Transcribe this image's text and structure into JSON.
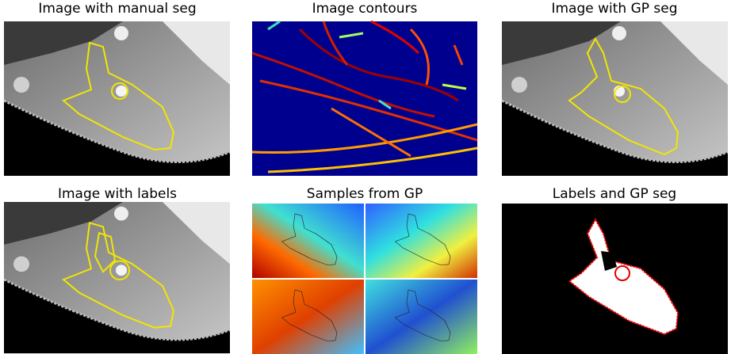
{
  "panels": [
    {
      "title": "Image with manual seg"
    },
    {
      "title": "Image contours"
    },
    {
      "title": "Image with GP seg"
    },
    {
      "title": "Image with labels"
    },
    {
      "title": "Samples from GP"
    },
    {
      "title": "Labels and GP seg"
    }
  ]
}
